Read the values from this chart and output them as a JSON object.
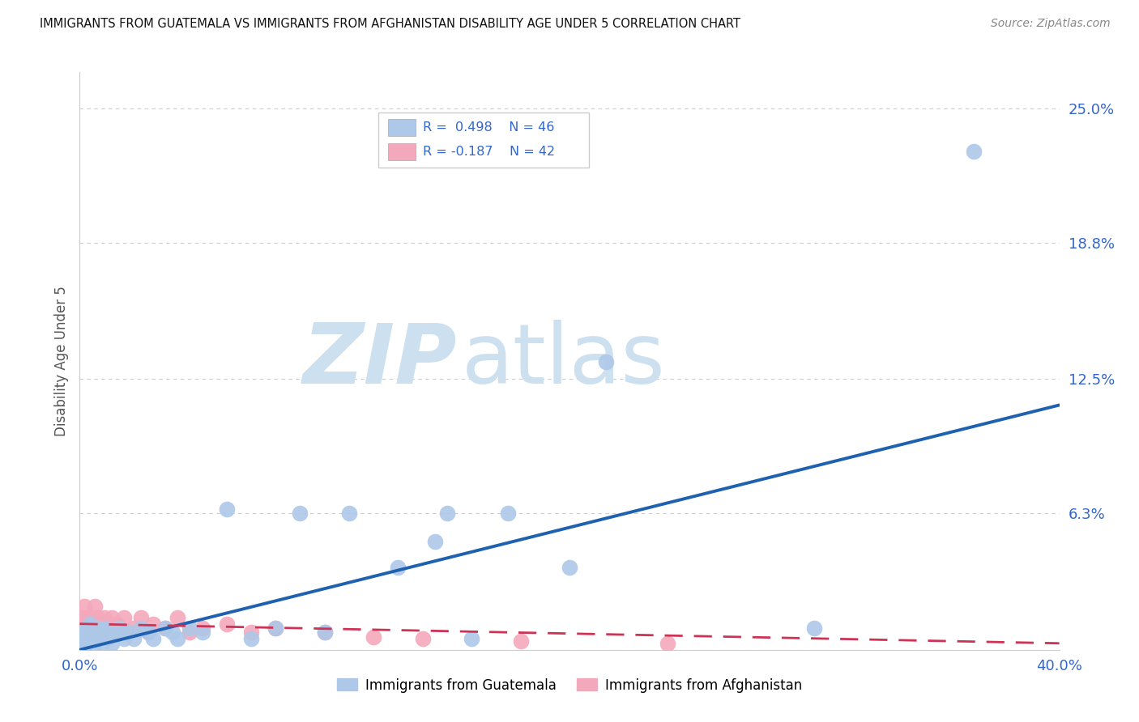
{
  "title": "IMMIGRANTS FROM GUATEMALA VS IMMIGRANTS FROM AFGHANISTAN DISABILITY AGE UNDER 5 CORRELATION CHART",
  "source": "Source: ZipAtlas.com",
  "ylabel": "Disability Age Under 5",
  "xmin": 0.0,
  "xmax": 0.4,
  "ymin": 0.0,
  "ymax": 0.2667,
  "guatemala_R": 0.498,
  "guatemala_N": 46,
  "afghanistan_R": -0.187,
  "afghanistan_N": 42,
  "guatemala_color": "#adc8e8",
  "afghanistan_color": "#f4a8bc",
  "guatemala_line_color": "#2060b0",
  "afghanistan_line_color": "#cc3355",
  "legend_label_1": "Immigrants from Guatemala",
  "legend_label_2": "Immigrants from Afghanistan",
  "background_color": "#ffffff",
  "grid_color": "#cccccc",
  "title_color": "#111111",
  "watermark_zip_color": "#cce0f0",
  "watermark_atlas_color": "#cce0f0",
  "guat_line_x0": 0.0,
  "guat_line_y0": 0.0,
  "guat_line_x1": 0.4,
  "guat_line_y1": 0.113,
  "afg_line_x0": 0.0,
  "afg_line_y0": 0.012,
  "afg_line_x1": 0.4,
  "afg_line_y1": 0.003,
  "guatemala_points_x": [
    0.001,
    0.002,
    0.002,
    0.003,
    0.003,
    0.004,
    0.004,
    0.005,
    0.005,
    0.006,
    0.007,
    0.007,
    0.008,
    0.009,
    0.01,
    0.011,
    0.012,
    0.013,
    0.015,
    0.016,
    0.018,
    0.02,
    0.022,
    0.025,
    0.028,
    0.03,
    0.035,
    0.038,
    0.04,
    0.045,
    0.05,
    0.06,
    0.07,
    0.08,
    0.09,
    0.1,
    0.11,
    0.13,
    0.145,
    0.15,
    0.16,
    0.175,
    0.2,
    0.215,
    0.3,
    0.365
  ],
  "guatemala_points_y": [
    0.003,
    0.005,
    0.008,
    0.003,
    0.01,
    0.006,
    0.012,
    0.005,
    0.008,
    0.003,
    0.01,
    0.005,
    0.008,
    0.003,
    0.01,
    0.005,
    0.008,
    0.003,
    0.008,
    0.01,
    0.005,
    0.008,
    0.005,
    0.01,
    0.008,
    0.005,
    0.01,
    0.008,
    0.005,
    0.01,
    0.008,
    0.065,
    0.005,
    0.01,
    0.063,
    0.008,
    0.063,
    0.038,
    0.05,
    0.063,
    0.005,
    0.063,
    0.038,
    0.133,
    0.01,
    0.23
  ],
  "afghanistan_points_x": [
    0.001,
    0.001,
    0.002,
    0.002,
    0.003,
    0.003,
    0.004,
    0.004,
    0.005,
    0.005,
    0.006,
    0.006,
    0.007,
    0.007,
    0.008,
    0.008,
    0.009,
    0.01,
    0.011,
    0.012,
    0.013,
    0.014,
    0.015,
    0.016,
    0.018,
    0.02,
    0.022,
    0.025,
    0.028,
    0.03,
    0.035,
    0.04,
    0.045,
    0.05,
    0.06,
    0.07,
    0.08,
    0.1,
    0.12,
    0.14,
    0.18,
    0.24
  ],
  "afghanistan_points_y": [
    0.01,
    0.015,
    0.008,
    0.02,
    0.01,
    0.015,
    0.008,
    0.012,
    0.01,
    0.015,
    0.008,
    0.02,
    0.01,
    0.015,
    0.008,
    0.012,
    0.01,
    0.015,
    0.008,
    0.01,
    0.015,
    0.008,
    0.012,
    0.01,
    0.015,
    0.008,
    0.01,
    0.015,
    0.008,
    0.012,
    0.01,
    0.015,
    0.008,
    0.01,
    0.012,
    0.008,
    0.01,
    0.008,
    0.006,
    0.005,
    0.004,
    0.003
  ]
}
